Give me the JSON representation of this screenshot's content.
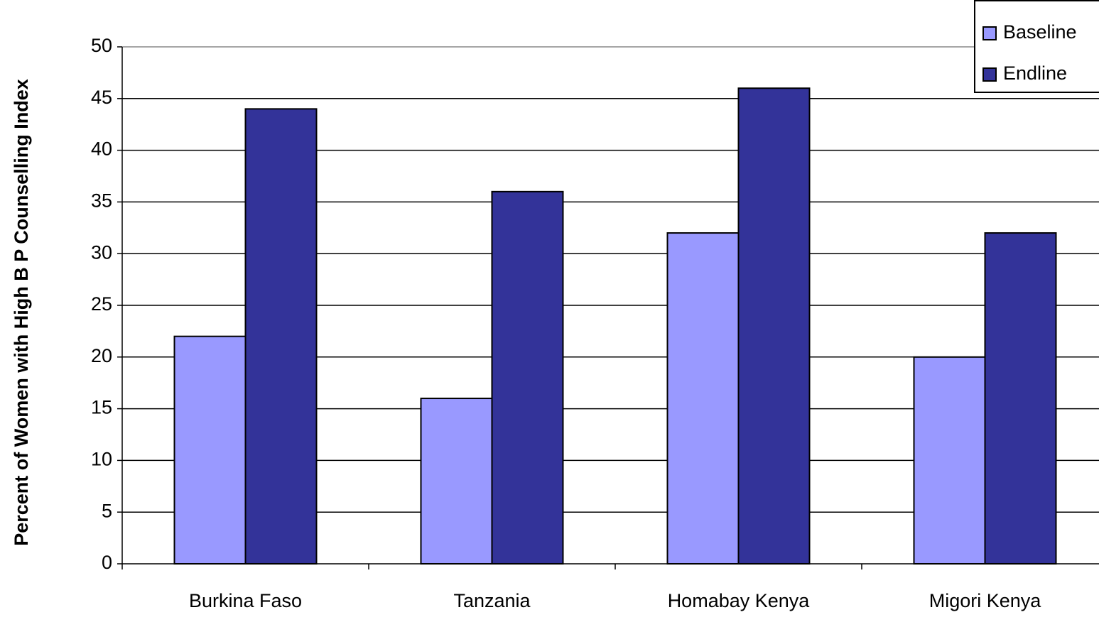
{
  "chart_data": {
    "type": "bar",
    "y_label": "Percent of Women with High B P Counselling Index",
    "categories": [
      "Burkina Faso",
      "Tanzania",
      "Homabay Kenya",
      "Migori Kenya"
    ],
    "series": [
      {
        "name": "Baseline",
        "color": "#9999ff",
        "values": [
          22,
          16,
          32,
          20
        ]
      },
      {
        "name": "Endline",
        "color": "#333399",
        "values": [
          44,
          36,
          46,
          32
        ]
      }
    ],
    "ylim": [
      0,
      50
    ],
    "yticks": [
      0,
      5,
      10,
      15,
      20,
      25,
      30,
      35,
      40,
      45,
      50
    ],
    "grid": true,
    "legend": "top-right"
  }
}
